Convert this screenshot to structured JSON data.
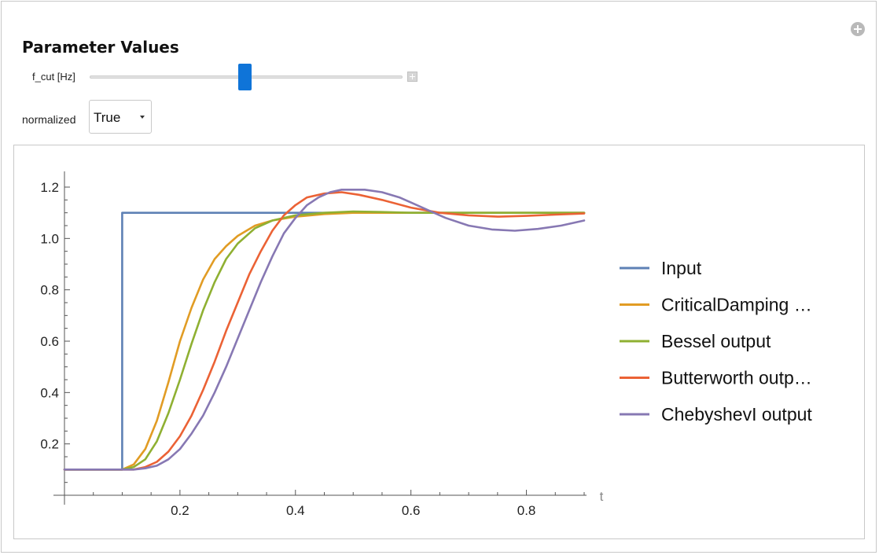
{
  "panel": {
    "heading": "Parameter Values",
    "corner_icon": "add-circle-icon"
  },
  "controls": {
    "slider_label": "f_cut [Hz]",
    "slider_position_fraction": 0.49,
    "normalized_label": "normalized",
    "normalized_value": "True"
  },
  "chart_data": {
    "type": "line",
    "xlabel": "t",
    "ylabel": "",
    "xlim": [
      0,
      0.9
    ],
    "ylim": [
      0,
      1.2
    ],
    "x_ticks": [
      "0.2",
      "0.4",
      "0.6",
      "0.8"
    ],
    "y_ticks": [
      "0.2",
      "0.4",
      "0.6",
      "0.8",
      "1.0",
      "1.2"
    ],
    "legend_position": "right",
    "series": [
      {
        "name": "Input",
        "color": "#5e81b5",
        "points": [
          [
            0.0,
            0.1
          ],
          [
            0.1,
            0.1
          ],
          [
            0.1,
            1.1
          ],
          [
            0.9,
            1.1
          ]
        ]
      },
      {
        "name": "CriticalDamping …",
        "color": "#e19c24",
        "points": [
          [
            0.0,
            0.1
          ],
          [
            0.1,
            0.1
          ],
          [
            0.12,
            0.12
          ],
          [
            0.14,
            0.18
          ],
          [
            0.16,
            0.29
          ],
          [
            0.18,
            0.44
          ],
          [
            0.2,
            0.6
          ],
          [
            0.22,
            0.73
          ],
          [
            0.24,
            0.84
          ],
          [
            0.26,
            0.92
          ],
          [
            0.28,
            0.97
          ],
          [
            0.3,
            1.01
          ],
          [
            0.33,
            1.05
          ],
          [
            0.36,
            1.07
          ],
          [
            0.4,
            1.085
          ],
          [
            0.45,
            1.095
          ],
          [
            0.5,
            1.1
          ],
          [
            0.9,
            1.1
          ]
        ]
      },
      {
        "name": "Bessel output",
        "color": "#8fb032",
        "points": [
          [
            0.0,
            0.1
          ],
          [
            0.1,
            0.1
          ],
          [
            0.12,
            0.11
          ],
          [
            0.14,
            0.14
          ],
          [
            0.16,
            0.21
          ],
          [
            0.18,
            0.32
          ],
          [
            0.2,
            0.45
          ],
          [
            0.22,
            0.59
          ],
          [
            0.24,
            0.72
          ],
          [
            0.26,
            0.83
          ],
          [
            0.28,
            0.92
          ],
          [
            0.3,
            0.98
          ],
          [
            0.33,
            1.04
          ],
          [
            0.36,
            1.07
          ],
          [
            0.4,
            1.09
          ],
          [
            0.45,
            1.1
          ],
          [
            0.5,
            1.105
          ],
          [
            0.55,
            1.103
          ],
          [
            0.6,
            1.1
          ],
          [
            0.9,
            1.1
          ]
        ]
      },
      {
        "name": "Butterworth outp…",
        "color": "#eb6235",
        "points": [
          [
            0.0,
            0.1
          ],
          [
            0.12,
            0.1
          ],
          [
            0.14,
            0.11
          ],
          [
            0.16,
            0.13
          ],
          [
            0.18,
            0.17
          ],
          [
            0.2,
            0.23
          ],
          [
            0.22,
            0.31
          ],
          [
            0.24,
            0.41
          ],
          [
            0.26,
            0.52
          ],
          [
            0.28,
            0.64
          ],
          [
            0.3,
            0.75
          ],
          [
            0.32,
            0.86
          ],
          [
            0.34,
            0.95
          ],
          [
            0.36,
            1.03
          ],
          [
            0.38,
            1.09
          ],
          [
            0.4,
            1.13
          ],
          [
            0.42,
            1.16
          ],
          [
            0.45,
            1.175
          ],
          [
            0.48,
            1.18
          ],
          [
            0.51,
            1.17
          ],
          [
            0.55,
            1.15
          ],
          [
            0.6,
            1.12
          ],
          [
            0.65,
            1.1
          ],
          [
            0.7,
            1.09
          ],
          [
            0.75,
            1.085
          ],
          [
            0.8,
            1.088
          ],
          [
            0.85,
            1.093
          ],
          [
            0.9,
            1.097
          ]
        ]
      },
      {
        "name": "ChebyshevI output",
        "color": "#8778b3",
        "points": [
          [
            0.0,
            0.1
          ],
          [
            0.12,
            0.1
          ],
          [
            0.14,
            0.105
          ],
          [
            0.16,
            0.115
          ],
          [
            0.18,
            0.14
          ],
          [
            0.2,
            0.18
          ],
          [
            0.22,
            0.24
          ],
          [
            0.24,
            0.31
          ],
          [
            0.26,
            0.4
          ],
          [
            0.28,
            0.5
          ],
          [
            0.3,
            0.61
          ],
          [
            0.32,
            0.72
          ],
          [
            0.34,
            0.83
          ],
          [
            0.36,
            0.93
          ],
          [
            0.38,
            1.02
          ],
          [
            0.4,
            1.08
          ],
          [
            0.42,
            1.13
          ],
          [
            0.44,
            1.16
          ],
          [
            0.46,
            1.18
          ],
          [
            0.48,
            1.19
          ],
          [
            0.5,
            1.19
          ],
          [
            0.52,
            1.19
          ],
          [
            0.55,
            1.18
          ],
          [
            0.58,
            1.16
          ],
          [
            0.6,
            1.14
          ],
          [
            0.63,
            1.11
          ],
          [
            0.66,
            1.08
          ],
          [
            0.7,
            1.05
          ],
          [
            0.74,
            1.035
          ],
          [
            0.78,
            1.03
          ],
          [
            0.82,
            1.037
          ],
          [
            0.86,
            1.05
          ],
          [
            0.9,
            1.07
          ]
        ]
      }
    ]
  }
}
